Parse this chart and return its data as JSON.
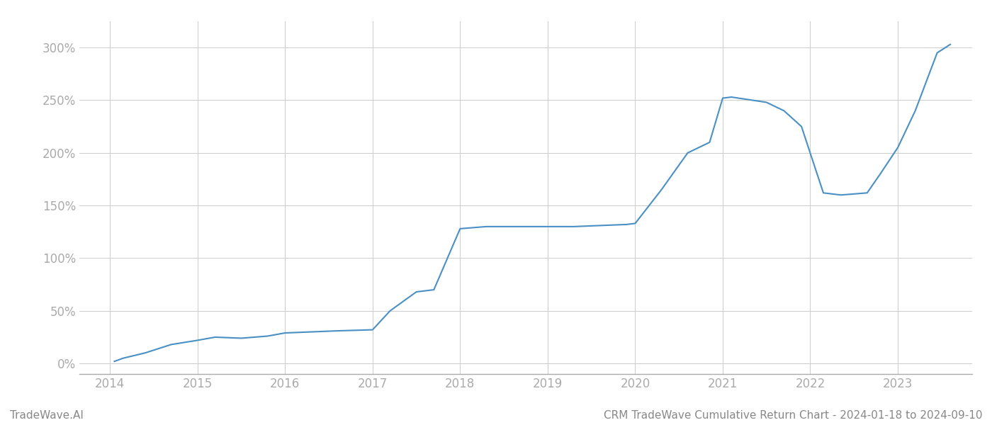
{
  "x_values": [
    2014.05,
    2014.15,
    2014.4,
    2014.7,
    2015.0,
    2015.2,
    2015.5,
    2015.8,
    2016.0,
    2016.3,
    2016.6,
    2017.0,
    2017.2,
    2017.5,
    2017.7,
    2018.0,
    2018.15,
    2018.3,
    2018.5,
    2019.0,
    2019.3,
    2019.6,
    2019.9,
    2020.0,
    2020.3,
    2020.6,
    2020.85,
    2021.0,
    2021.1,
    2021.5,
    2021.7,
    2021.9,
    2022.15,
    2022.35,
    2022.5,
    2022.65,
    2022.8,
    2023.0,
    2023.2,
    2023.45,
    2023.6
  ],
  "y_values": [
    2,
    5,
    10,
    18,
    22,
    25,
    24,
    26,
    29,
    30,
    31,
    32,
    50,
    68,
    70,
    128,
    129,
    130,
    130,
    130,
    130,
    131,
    132,
    133,
    165,
    200,
    210,
    252,
    253,
    248,
    240,
    225,
    162,
    160,
    161,
    162,
    180,
    205,
    240,
    295,
    303
  ],
  "line_color": "#4a90c4",
  "line_width": 1.5,
  "background_color": "#ffffff",
  "grid_color": "#cccccc",
  "ylabel_ticks": [
    0,
    50,
    100,
    150,
    200,
    250,
    300
  ],
  "ylabel_labels": [
    "0%",
    "50%",
    "100%",
    "150%",
    "200%",
    "250%",
    "300%"
  ],
  "xlim": [
    2013.65,
    2023.85
  ],
  "ylim": [
    -10,
    325
  ],
  "xticks": [
    2014,
    2015,
    2016,
    2017,
    2018,
    2019,
    2020,
    2021,
    2022,
    2023
  ],
  "tick_fontsize": 12,
  "tick_color": "#aaaaaa",
  "axis_color": "#aaaaaa",
  "footer_left": "TradeWave.AI",
  "footer_right": "CRM TradeWave Cumulative Return Chart - 2024-01-18 to 2024-09-10",
  "footer_fontsize": 11,
  "footer_color": "#888888"
}
